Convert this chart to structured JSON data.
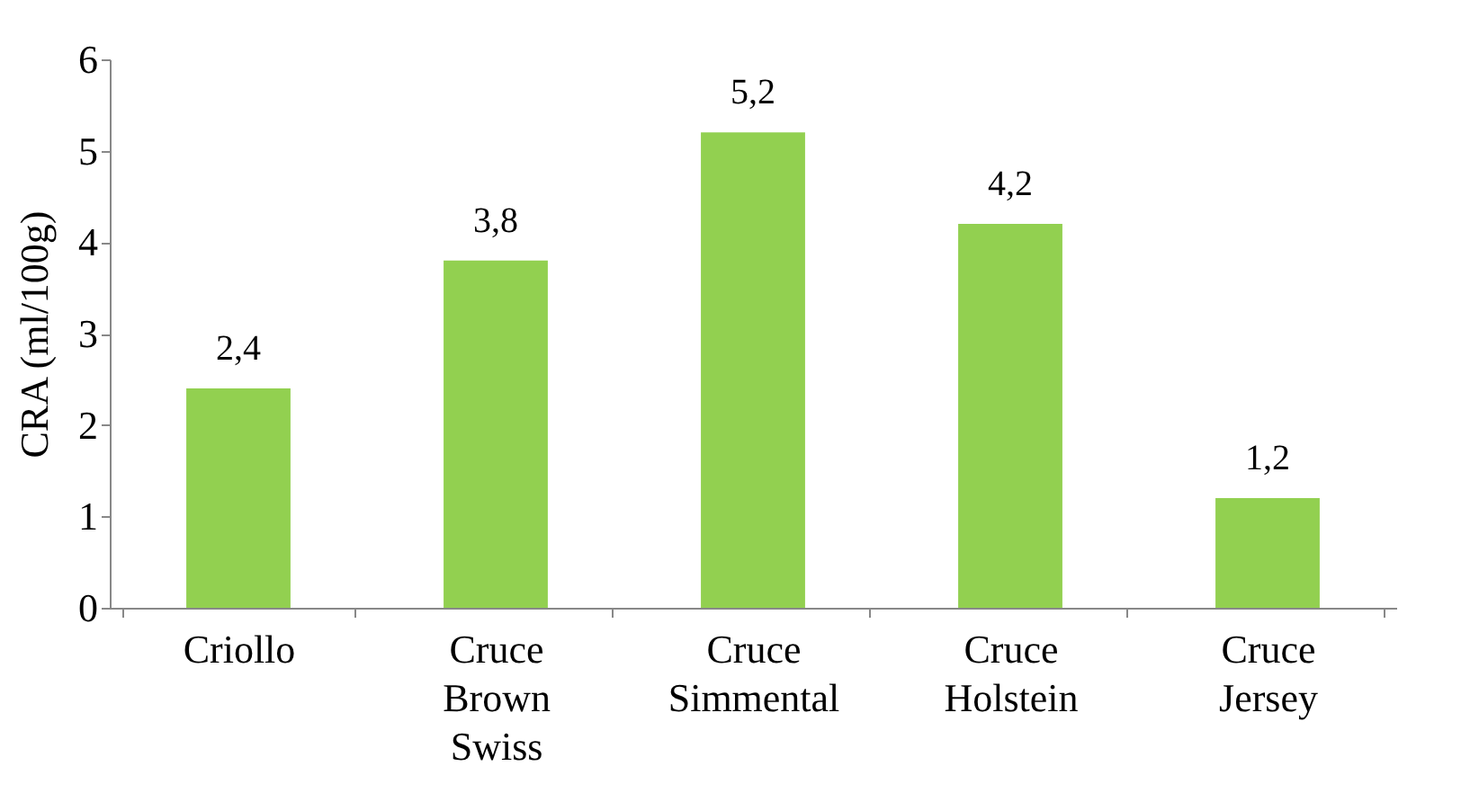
{
  "chart_data": {
    "type": "bar",
    "ylabel": "CRA (ml/100g)",
    "categories": [
      "Criollo",
      "Cruce Brown Swiss",
      "Cruce Simmental",
      "Cruce Holstein",
      "Cruce Jersey"
    ],
    "values": [
      2.4,
      3.8,
      5.2,
      4.2,
      1.2
    ],
    "value_labels": [
      "2,4",
      "3,8",
      "5,2",
      "4,2",
      "1,2"
    ],
    "color": "#92d050",
    "ylim": [
      0,
      6
    ],
    "yticks": [
      0,
      1,
      2,
      3,
      4,
      5,
      6
    ],
    "grid": false
  }
}
